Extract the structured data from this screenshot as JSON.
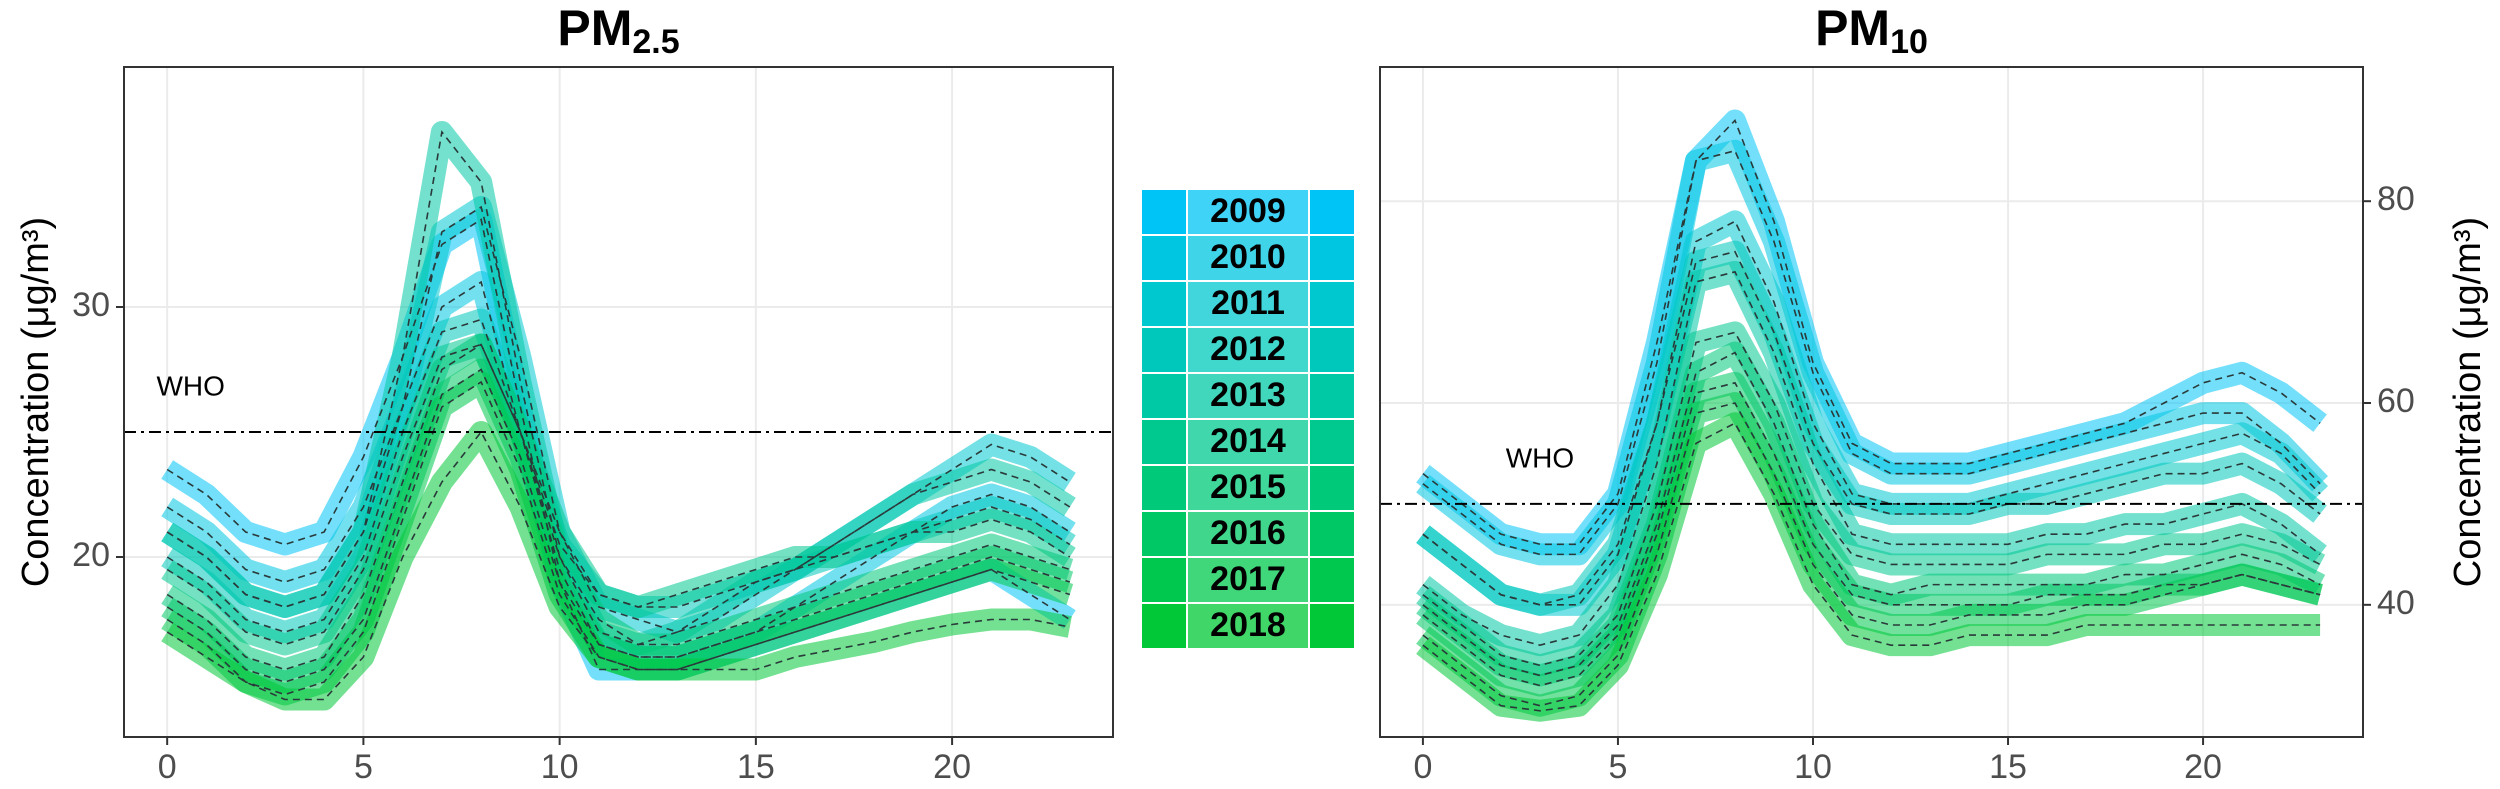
{
  "chart_data": [
    {
      "type": "line",
      "title": "PM",
      "title_subscript": "2.5",
      "y_label": "Concentration (μg/m³)",
      "y_axis_side": "left",
      "x": [
        0,
        1,
        2,
        3,
        4,
        5,
        6,
        7,
        8,
        9,
        10,
        11,
        12,
        13,
        14,
        15,
        16,
        17,
        18,
        19,
        20,
        21,
        22,
        23
      ],
      "xlim": [
        -1.1,
        24.1
      ],
      "xticks": [
        0,
        5,
        10,
        15,
        20
      ],
      "ylim": [
        12.8,
        39.6
      ],
      "yticks": [
        20,
        30
      ],
      "grid": true,
      "hline": {
        "value": 25,
        "label": "WHO"
      },
      "series": [
        {
          "name": "2009",
          "color": "#00c4f5",
          "values": [
            23.5,
            22.5,
            21,
            20.5,
            21,
            24,
            28,
            32.5,
            33.5,
            26,
            19,
            15.5,
            15.5,
            15.5,
            16,
            16.5,
            17,
            17.5,
            18,
            18.5,
            19,
            19.5,
            18.5,
            17.5
          ]
        },
        {
          "name": "2010",
          "color": "#00c6e2",
          "values": [
            22,
            21,
            19.5,
            19,
            19.5,
            22,
            26,
            30,
            31,
            25,
            19.5,
            16.5,
            16,
            16,
            16.5,
            17,
            18,
            19,
            20,
            21,
            22,
            22.5,
            22,
            21
          ]
        },
        {
          "name": "2011",
          "color": "#00c8cf",
          "values": [
            21,
            20,
            18.5,
            18,
            18.5,
            21,
            26,
            33,
            34,
            28,
            21,
            18,
            17.5,
            17,
            17.5,
            18.5,
            19.5,
            20.5,
            21.5,
            22.5,
            23.5,
            24.5,
            24,
            23
          ]
        },
        {
          "name": "2012",
          "color": "#00c9bb",
          "values": [
            20,
            19,
            17.5,
            17,
            17.5,
            20,
            25,
            29,
            29.5,
            25,
            20.5,
            18.5,
            18,
            18,
            18.5,
            19,
            19.5,
            20,
            20.5,
            21,
            21.5,
            22,
            21.5,
            20.5
          ]
        },
        {
          "name": "2013",
          "color": "#00c9a6",
          "values": [
            21,
            20,
            18.5,
            18,
            18.5,
            21,
            28,
            37,
            35,
            27,
            20,
            17,
            16.5,
            17,
            18,
            19,
            19.5,
            20.5,
            21.5,
            22.5,
            23,
            23.5,
            23,
            22
          ]
        },
        {
          "name": "2014",
          "color": "#00c990",
          "values": [
            19.5,
            18.5,
            17,
            16.5,
            17,
            19.5,
            24,
            28,
            28.5,
            25,
            21,
            18.5,
            18,
            18.5,
            19,
            19.5,
            20,
            20,
            20.5,
            21,
            21,
            21.5,
            21,
            20
          ]
        },
        {
          "name": "2015",
          "color": "#00c97a",
          "values": [
            18.5,
            17.5,
            16,
            15.5,
            16,
            18.5,
            23,
            27.5,
            28.5,
            25,
            20,
            17.5,
            16.5,
            16.5,
            17,
            17.5,
            18,
            18.5,
            19,
            19.5,
            20,
            20.5,
            20,
            19.5
          ]
        },
        {
          "name": "2016",
          "color": "#00c864",
          "values": [
            18,
            17,
            15.5,
            15,
            15.5,
            17.5,
            22,
            26.5,
            27.5,
            24,
            19,
            16.5,
            16,
            16,
            16.5,
            17,
            17.5,
            18,
            18.5,
            19,
            19.5,
            20,
            19.5,
            19
          ]
        },
        {
          "name": "2017",
          "color": "#00c84e",
          "values": [
            17.5,
            16.5,
            15,
            14.5,
            15,
            17,
            21.5,
            26,
            27,
            23.5,
            18.5,
            16,
            15.5,
            15.5,
            16,
            16.5,
            17,
            17.5,
            18,
            18.5,
            19,
            19.5,
            19,
            18.5
          ]
        },
        {
          "name": "2018",
          "color": "#00c836",
          "values": [
            17,
            16,
            15,
            14.3,
            14.3,
            16,
            20,
            23,
            25,
            22,
            18,
            16,
            15.5,
            15.5,
            15.5,
            15.5,
            16,
            16.3,
            16.6,
            17,
            17.3,
            17.5,
            17.5,
            17.2
          ]
        }
      ]
    },
    {
      "type": "line",
      "title": "PM",
      "title_subscript": "10",
      "y_label": "Concentration (μg/m³)",
      "y_axis_side": "right",
      "x": [
        0,
        1,
        2,
        3,
        4,
        5,
        6,
        7,
        8,
        9,
        10,
        11,
        12,
        13,
        14,
        15,
        16,
        17,
        18,
        19,
        20,
        21,
        22,
        23
      ],
      "xlim": [
        -1.1,
        24.1
      ],
      "xticks": [
        0,
        5,
        10,
        15,
        20
      ],
      "ylim": [
        26.9,
        93.3
      ],
      "yticks": [
        40,
        60,
        80
      ],
      "grid": true,
      "hline": {
        "value": 50,
        "label": "WHO"
      },
      "series": [
        {
          "name": "2009",
          "color": "#00c4f5",
          "values": [
            53,
            50,
            47,
            46,
            46,
            51,
            66,
            84,
            88,
            78,
            64,
            56,
            54,
            54,
            54,
            55,
            56,
            57,
            58,
            60,
            62,
            63,
            61,
            58
          ]
        },
        {
          "name": "2010",
          "color": "#00c6e2",
          "values": [
            52,
            49,
            46,
            45,
            45,
            50,
            64,
            84,
            85,
            76,
            63,
            55,
            53,
            53,
            53,
            54,
            55,
            56,
            57,
            58,
            59,
            59,
            56,
            52
          ]
        },
        {
          "name": "2011",
          "color": "#00c8cf",
          "values": [
            47,
            44,
            41,
            40,
            40,
            45,
            58,
            76,
            78,
            70,
            58,
            51,
            50,
            50,
            50,
            51,
            52,
            53,
            54,
            55,
            56,
            57,
            55,
            51
          ]
        },
        {
          "name": "2012",
          "color": "#00c9bb",
          "values": [
            47,
            44,
            41,
            40,
            41,
            46,
            58,
            74,
            75,
            67,
            56,
            50,
            49,
            49,
            49,
            50,
            50,
            51,
            52,
            53,
            53,
            54,
            52,
            49
          ]
        },
        {
          "name": "2013",
          "color": "#00c9a6",
          "values": [
            42,
            39,
            37,
            36,
            37,
            42,
            54,
            72,
            73,
            65,
            54,
            47,
            46,
            46,
            46,
            46,
            47,
            47,
            48,
            48,
            49,
            50,
            48,
            45
          ]
        },
        {
          "name": "2014",
          "color": "#00c990",
          "values": [
            41,
            38,
            35,
            34,
            35,
            39,
            50,
            66,
            67,
            60,
            50,
            45,
            44,
            44,
            44,
            44,
            45,
            45,
            45,
            46,
            46,
            47,
            46,
            44
          ]
        },
        {
          "name": "2015",
          "color": "#00c97a",
          "values": [
            40,
            37,
            34,
            33,
            34,
            38,
            48,
            63,
            65,
            58,
            48,
            42,
            41,
            42,
            42,
            42,
            42,
            42,
            43,
            43,
            44,
            45,
            44,
            42
          ]
        },
        {
          "name": "2016",
          "color": "#00c864",
          "values": [
            39,
            36,
            33,
            32,
            33,
            37,
            47,
            61,
            62,
            55,
            46,
            41,
            40,
            40,
            40,
            40,
            41,
            41,
            41,
            42,
            42,
            43,
            42,
            41
          ]
        },
        {
          "name": "2017",
          "color": "#00c84e",
          "values": [
            37,
            34,
            31,
            30,
            31,
            35,
            45,
            59,
            60,
            53,
            44,
            39,
            38,
            38,
            39,
            39,
            39,
            40,
            40,
            41,
            42,
            43,
            42,
            41
          ]
        },
        {
          "name": "2018",
          "color": "#00c836",
          "values": [
            36,
            33,
            30,
            29.5,
            30,
            34,
            43,
            56,
            58,
            51,
            42,
            37,
            36,
            36,
            37,
            37,
            37,
            38,
            38,
            38,
            38,
            38,
            38,
            38
          ]
        }
      ]
    }
  ]
}
